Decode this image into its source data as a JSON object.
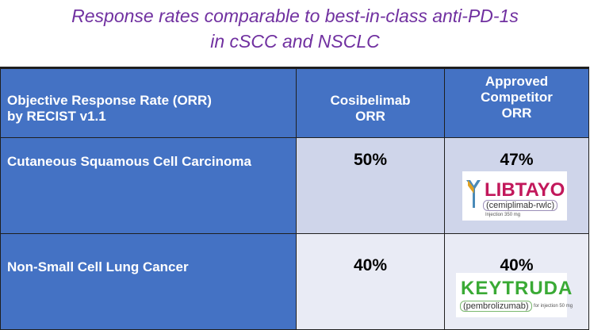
{
  "title": {
    "line1": "Response rates comparable to best-in-class anti-PD-1s",
    "line2": "in cSCC and NSCLC"
  },
  "table": {
    "header": {
      "col1_line1": "Objective Response Rate (ORR)",
      "col1_line2": "by RECIST v1.1",
      "col2_line1": "Cosibelimab",
      "col2_line2": "ORR",
      "col3_line1": "Approved",
      "col3_line2": "Competitor",
      "col3_line3": "ORR"
    },
    "rows": [
      {
        "label": "Cutaneous Squamous Cell Carcinoma",
        "cosibelimab_orr": "50%",
        "competitor_orr": "47%",
        "competitor_logo": {
          "name": "LIBTAYO",
          "generic": "(cemiplimab-rwlc)",
          "fine_print": "Injection 350 mg"
        }
      },
      {
        "label": "Non-Small Cell Lung Cancer",
        "cosibelimab_orr": "40%",
        "competitor_orr": "40%",
        "competitor_logo": {
          "name": "KEYTRUDA",
          "generic": "(pembrolizumab)",
          "fine_print": "for injection 50 mg"
        }
      }
    ]
  },
  "colors": {
    "title": "#7030a0",
    "header_bg": "#4472c4",
    "row1_value_bg": "#cfd5ea",
    "row2_value_bg": "#e9ebf5",
    "libtayo_brand": "#c2185b",
    "keytruda_brand": "#3aaa35"
  }
}
